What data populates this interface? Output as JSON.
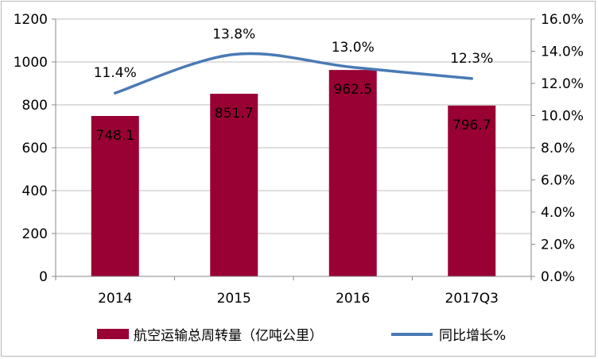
{
  "chart_data": {
    "type": "bar",
    "categories": [
      "2014",
      "2015",
      "2016",
      "2017Q3"
    ],
    "series": [
      {
        "name": "航空运输总周转量（亿吨公里）",
        "type": "bar",
        "axis": "left",
        "values": [
          748.1,
          851.7,
          962.5,
          796.7
        ],
        "labels": [
          "748.1",
          "851.7",
          "962.5",
          "796.7"
        ],
        "color": "#990033"
      },
      {
        "name": "同比增长%",
        "type": "line",
        "axis": "right",
        "values": [
          11.4,
          13.8,
          13.0,
          12.3
        ],
        "labels": [
          "11.4%",
          "13.8%",
          "13.0%",
          "12.3%"
        ],
        "color": "#4a7ab5"
      }
    ],
    "y_left": {
      "min": 0,
      "max": 1200,
      "ticks": [
        "0",
        "200",
        "400",
        "600",
        "800",
        "1000",
        "1200"
      ]
    },
    "y_right": {
      "min": 0,
      "max": 16,
      "ticks": [
        "0.0%",
        "2.0%",
        "4.0%",
        "6.0%",
        "8.0%",
        "10.0%",
        "12.0%",
        "14.0%",
        "16.0%"
      ]
    },
    "grid": true,
    "legend_position": "bottom"
  }
}
